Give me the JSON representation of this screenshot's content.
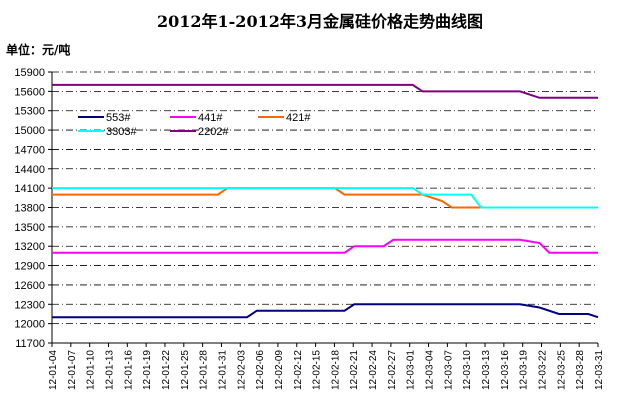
{
  "chart_data": {
    "type": "line",
    "title": "2012年1-2012年3月金属硅价格走势曲线图",
    "unit_label": "单位：元/吨",
    "ylim": [
      11700,
      15900
    ],
    "y_ticks": [
      "15900",
      "15600",
      "15300",
      "15000",
      "14700",
      "14400",
      "14100",
      "13800",
      "13500",
      "13200",
      "12900",
      "12600",
      "12300",
      "12000",
      "11700"
    ],
    "x_ticks": [
      "12-01-04",
      "12-01-07",
      "12-01-10",
      "12-01-13",
      "12-01-16",
      "12-01-19",
      "12-01-22",
      "12-01-25",
      "12-01-28",
      "12-01-31",
      "12-02-03",
      "12-02-06",
      "12-02-09",
      "12-02-12",
      "12-02-15",
      "12-02-18",
      "12-02-21",
      "12-02-24",
      "12-02-27",
      "12-03-01",
      "12-03-04",
      "12-03-07",
      "12-03-10",
      "12-03-13",
      "12-03-16",
      "12-03-19",
      "12-03-22",
      "12-03-25",
      "12-03-28",
      "12-03-31"
    ],
    "grid": "horizontal dashed",
    "legend_position": "upper-left inside",
    "series": [
      {
        "name": "553#",
        "color": "#000080",
        "points": [
          [
            0,
            12100
          ],
          [
            20,
            12100
          ],
          [
            21,
            12200
          ],
          [
            30,
            12200
          ],
          [
            31,
            12300
          ],
          [
            48,
            12300
          ],
          [
            50,
            12250
          ],
          [
            52,
            12150
          ],
          [
            55,
            12150
          ],
          [
            56,
            12100
          ]
        ]
      },
      {
        "name": "441#",
        "color": "#ff00ff",
        "points": [
          [
            0,
            13100
          ],
          [
            30,
            13100
          ],
          [
            31,
            13200
          ],
          [
            34,
            13200
          ],
          [
            35,
            13300
          ],
          [
            48,
            13300
          ],
          [
            50,
            13250
          ],
          [
            51,
            13100
          ],
          [
            56,
            13100
          ]
        ]
      },
      {
        "name": "421#",
        "color": "#ff6600",
        "points": [
          [
            0,
            14000
          ],
          [
            17,
            14000
          ],
          [
            18,
            14100
          ],
          [
            29,
            14100
          ],
          [
            30,
            14000
          ],
          [
            38,
            14000
          ],
          [
            40,
            13900
          ],
          [
            41,
            13800
          ],
          [
            56,
            13800
          ]
        ]
      },
      {
        "name": "3303#",
        "color": "#00ffff",
        "points": [
          [
            0,
            14100
          ],
          [
            37,
            14100
          ],
          [
            38,
            14000
          ],
          [
            43,
            14000
          ],
          [
            44,
            13800
          ],
          [
            56,
            13800
          ]
        ]
      },
      {
        "name": "2202#",
        "color": "#800080",
        "points": [
          [
            0,
            15700
          ],
          [
            37,
            15700
          ],
          [
            38,
            15600
          ],
          [
            48,
            15600
          ],
          [
            50,
            15500
          ],
          [
            56,
            15500
          ]
        ]
      }
    ]
  }
}
